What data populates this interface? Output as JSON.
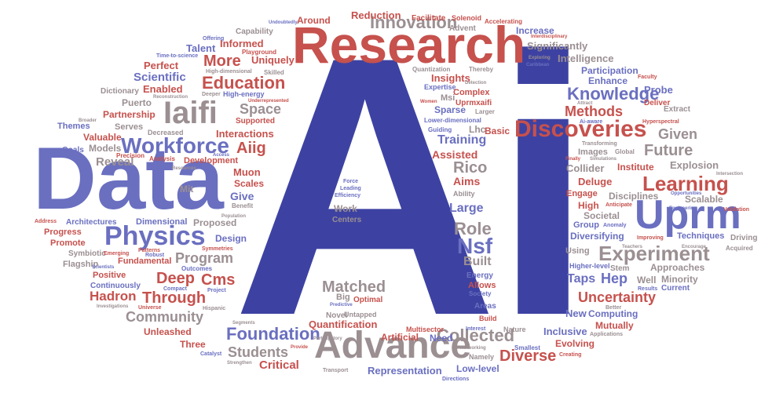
{
  "words": [
    {
      "text": "Ai",
      "color": "#3d42a2"
    },
    {
      "text": "Data",
      "color": "#6a6fc0"
    },
    {
      "text": "Research",
      "color": "#c6514d"
    },
    {
      "text": "Advance",
      "color": "#9b8f92"
    },
    {
      "text": "Uprm",
      "color": "#6a6fc0"
    },
    {
      "text": "Physics",
      "color": "#6a6fc0"
    },
    {
      "text": "Iaifi",
      "color": "#9b8f92"
    },
    {
      "text": "Discoveries",
      "color": "#c6514d"
    },
    {
      "text": "Workforce",
      "color": "#6a6fc0"
    },
    {
      "text": "Experiment",
      "color": "#9b8f92"
    },
    {
      "text": "Learning",
      "color": "#c6514d"
    },
    {
      "text": "Innovation",
      "color": "#9b8f92"
    },
    {
      "text": "Knowledge",
      "color": "#6a6fc0"
    },
    {
      "text": "Collected",
      "color": "#9b8f92"
    },
    {
      "text": "Foundation",
      "color": "#6a6fc0"
    },
    {
      "text": "Education",
      "color": "#c6514d"
    },
    {
      "text": "Nsf",
      "color": "#6a6fc0"
    },
    {
      "text": "Role",
      "color": "#9b8f92"
    },
    {
      "text": "Matched",
      "color": "#9b8f92"
    },
    {
      "text": "Diverse",
      "color": "#c6514d"
    },
    {
      "text": "Students",
      "color": "#9b8f92"
    },
    {
      "text": "Through",
      "color": "#c6514d"
    },
    {
      "text": "Community",
      "color": "#9b8f92"
    },
    {
      "text": "Uncertainty",
      "color": "#c6514d"
    },
    {
      "text": "Methods",
      "color": "#c6514d"
    },
    {
      "text": "Hadron",
      "color": "#c6514d"
    },
    {
      "text": "Deep",
      "color": "#c6514d"
    },
    {
      "text": "Cms",
      "color": "#c6514d"
    },
    {
      "text": "Aiig",
      "color": "#c6514d"
    },
    {
      "text": "Future",
      "color": "#9b8f92"
    },
    {
      "text": "More",
      "color": "#c6514d"
    },
    {
      "text": "Space",
      "color": "#9b8f92"
    },
    {
      "text": "Given",
      "color": "#9b8f92"
    },
    {
      "text": "Training",
      "color": "#6a6fc0"
    },
    {
      "text": "Rico",
      "color": "#9b8f92"
    },
    {
      "text": "Program",
      "color": "#9b8f92"
    },
    {
      "text": "Scientific",
      "color": "#6a6fc0"
    },
    {
      "text": "Reveal",
      "color": "#9b8f92"
    },
    {
      "text": "Large",
      "color": "#6a6fc0"
    },
    {
      "text": "Built",
      "color": "#9b8f92"
    },
    {
      "text": "Hep",
      "color": "#6a6fc0"
    },
    {
      "text": "Taps",
      "color": "#6a6fc0"
    },
    {
      "text": "Critical",
      "color": "#c6514d"
    },
    {
      "text": "Representation",
      "color": "#6a6fc0"
    },
    {
      "text": "Quantification",
      "color": "#c6514d"
    },
    {
      "text": "Interactions",
      "color": "#c6514d"
    },
    {
      "text": "Perfect",
      "color": "#c6514d"
    },
    {
      "text": "Talent",
      "color": "#6a6fc0"
    },
    {
      "text": "Informed",
      "color": "#c6514d"
    },
    {
      "text": "Reduction",
      "color": "#c6514d"
    },
    {
      "text": "Around",
      "color": "#c6514d"
    },
    {
      "text": "Intelligence",
      "color": "#9b8f92"
    },
    {
      "text": "Significantly",
      "color": "#9b8f92"
    },
    {
      "text": "Increase",
      "color": "#6a6fc0"
    },
    {
      "text": "Capability",
      "color": "#9b8f92"
    },
    {
      "text": "Uniquely",
      "color": "#c6514d"
    },
    {
      "text": "Enabled",
      "color": "#c6514d"
    },
    {
      "text": "Puerto",
      "color": "#9b8f92"
    },
    {
      "text": "Partnership",
      "color": "#c6514d"
    },
    {
      "text": "Dictionary",
      "color": "#9b8f92"
    },
    {
      "text": "Valuable",
      "color": "#c6514d"
    },
    {
      "text": "Themes",
      "color": "#6a6fc0"
    },
    {
      "text": "Models",
      "color": "#9b8f92"
    },
    {
      "text": "Goals",
      "color": "#6a6fc0"
    },
    {
      "text": "Serves",
      "color": "#9b8f92"
    },
    {
      "text": "Supported",
      "color": "#c6514d"
    },
    {
      "text": "Development",
      "color": "#c6514d"
    },
    {
      "text": "Muon",
      "color": "#c6514d"
    },
    {
      "text": "Mit",
      "color": "#9b8f92"
    },
    {
      "text": "Scales",
      "color": "#c6514d"
    },
    {
      "text": "Give",
      "color": "#6a6fc0"
    },
    {
      "text": "Assisted",
      "color": "#c6514d"
    },
    {
      "text": "Aims",
      "color": "#c6514d"
    },
    {
      "text": "Basic",
      "color": "#c6514d"
    },
    {
      "text": "Lhc",
      "color": "#9b8f92"
    },
    {
      "text": "Sparse",
      "color": "#6a6fc0"
    },
    {
      "text": "Insights",
      "color": "#c6514d"
    },
    {
      "text": "Complex",
      "color": "#c6514d"
    },
    {
      "text": "Msi",
      "color": "#9b8f92"
    },
    {
      "text": "Uprmxaifi",
      "color": "#c6514d"
    },
    {
      "text": "Expertise",
      "color": "#6a6fc0"
    },
    {
      "text": "Participation",
      "color": "#6a6fc0"
    },
    {
      "text": "Enhance",
      "color": "#6a6fc0"
    },
    {
      "text": "Probe",
      "color": "#6a6fc0"
    },
    {
      "text": "Deliver",
      "color": "#c6514d"
    },
    {
      "text": "Extract",
      "color": "#9b8f92"
    },
    {
      "text": "Institute",
      "color": "#c6514d"
    },
    {
      "text": "Collider",
      "color": "#9b8f92"
    },
    {
      "text": "Explosion",
      "color": "#9b8f92"
    },
    {
      "text": "Deluge",
      "color": "#c6514d"
    },
    {
      "text": "Disciplines",
      "color": "#9b8f92"
    },
    {
      "text": "Engage",
      "color": "#c6514d"
    },
    {
      "text": "High",
      "color": "#c6514d"
    },
    {
      "text": "Scalable",
      "color": "#9b8f92"
    },
    {
      "text": "Societal",
      "color": "#9b8f92"
    },
    {
      "text": "Group",
      "color": "#6a6fc0"
    },
    {
      "text": "Diversifying",
      "color": "#6a6fc0"
    },
    {
      "text": "Techniques",
      "color": "#6a6fc0"
    },
    {
      "text": "Driving",
      "color": "#9b8f92"
    },
    {
      "text": "Using",
      "color": "#9b8f92"
    },
    {
      "text": "Stem",
      "color": "#9b8f92"
    },
    {
      "text": "Approaches",
      "color": "#9b8f92"
    },
    {
      "text": "Well",
      "color": "#9b8f92"
    },
    {
      "text": "Minority",
      "color": "#9b8f92"
    },
    {
      "text": "Current",
      "color": "#6a6fc0"
    },
    {
      "text": "New",
      "color": "#6a6fc0"
    },
    {
      "text": "Computing",
      "color": "#6a6fc0"
    },
    {
      "text": "Mutually",
      "color": "#c6514d"
    },
    {
      "text": "Inclusive",
      "color": "#6a6fc0"
    },
    {
      "text": "Evolving",
      "color": "#c6514d"
    },
    {
      "text": "Low-level",
      "color": "#6a6fc0"
    },
    {
      "text": "Need",
      "color": "#6a6fc0"
    },
    {
      "text": "Artificial",
      "color": "#c6514d"
    },
    {
      "text": "Unleashed",
      "color": "#c6514d"
    },
    {
      "text": "Three",
      "color": "#c6514d"
    },
    {
      "text": "Optimal",
      "color": "#c6514d"
    },
    {
      "text": "Big",
      "color": "#9b8f92"
    },
    {
      "text": "Novel",
      "color": "#9b8f92"
    },
    {
      "text": "Untapped",
      "color": "#9b8f92"
    },
    {
      "text": "Continuously",
      "color": "#6a6fc0"
    },
    {
      "text": "Positive",
      "color": "#c6514d"
    },
    {
      "text": "Flagship",
      "color": "#9b8f92"
    },
    {
      "text": "Symbiotic",
      "color": "#9b8f92"
    },
    {
      "text": "Promote",
      "color": "#c6514d"
    },
    {
      "text": "Progress",
      "color": "#c6514d"
    },
    {
      "text": "Fundamental",
      "color": "#c6514d"
    },
    {
      "text": "Dimensional",
      "color": "#6a6fc0"
    },
    {
      "text": "Proposed",
      "color": "#9b8f92"
    },
    {
      "text": "Design",
      "color": "#6a6fc0"
    },
    {
      "text": "Architectures",
      "color": "#6a6fc0"
    },
    {
      "text": "Work",
      "color": "#9b8f92"
    },
    {
      "text": "Centers",
      "color": "#9b8f92"
    },
    {
      "text": "Force",
      "color": "#6a6fc0"
    },
    {
      "text": "Leading",
      "color": "#6a6fc0"
    },
    {
      "text": "Efficiency",
      "color": "#6a6fc0"
    },
    {
      "text": "Allows",
      "color": "#c6514d"
    },
    {
      "text": "Energy",
      "color": "#6a6fc0"
    },
    {
      "text": "Society",
      "color": "#6a6fc0"
    },
    {
      "text": "Areas",
      "color": "#6a6fc0"
    },
    {
      "text": "Build",
      "color": "#c6514d"
    },
    {
      "text": "Solenoid",
      "color": "#c6514d"
    },
    {
      "text": "Facilitate",
      "color": "#c6514d"
    },
    {
      "text": "Accelerating",
      "color": "#c6514d"
    },
    {
      "text": "Advent",
      "color": "#9b8f92"
    },
    {
      "text": "Quantization",
      "color": "#9b8f92"
    },
    {
      "text": "Thereby",
      "color": "#9b8f92"
    },
    {
      "text": "Undoubtedly",
      "color": "#6a6fc0"
    },
    {
      "text": "Offering",
      "color": "#6a6fc0"
    },
    {
      "text": "Playground",
      "color": "#c6514d"
    },
    {
      "text": "Time-to-science",
      "color": "#6a6fc0"
    },
    {
      "text": "Skilled",
      "color": "#9b8f92"
    },
    {
      "text": "High-dimensional",
      "color": "#9b8f92"
    },
    {
      "text": "High-energy",
      "color": "#6a6fc0"
    },
    {
      "text": "Deeper",
      "color": "#9b8f92"
    },
    {
      "text": "Reconstruction",
      "color": "#9b8f92"
    },
    {
      "text": "Underrepresented",
      "color": "#c6514d"
    },
    {
      "text": "Broader",
      "color": "#9b8f92"
    },
    {
      "text": "Decreased",
      "color": "#9b8f92"
    },
    {
      "text": "Precision",
      "color": "#c6514d"
    },
    {
      "text": "Analysis",
      "color": "#c6514d"
    },
    {
      "text": "Access",
      "color": "#6a6fc0"
    },
    {
      "text": "Resources",
      "color": "#9b8f92"
    },
    {
      "text": "Population",
      "color": "#9b8f92"
    },
    {
      "text": "Benefit",
      "color": "#9b8f92"
    },
    {
      "text": "Address",
      "color": "#c6514d"
    },
    {
      "text": "Symmetries",
      "color": "#c6514d"
    },
    {
      "text": "Patterns",
      "color": "#c6514d"
    },
    {
      "text": "Emerging",
      "color": "#c6514d"
    },
    {
      "text": "Robust",
      "color": "#6a6fc0"
    },
    {
      "text": "Scientists",
      "color": "#6a6fc0"
    },
    {
      "text": "Outcomes",
      "color": "#6a6fc0"
    },
    {
      "text": "Compact",
      "color": "#6a6fc0"
    },
    {
      "text": "Universe",
      "color": "#c6514d"
    },
    {
      "text": "Project",
      "color": "#6a6fc0"
    },
    {
      "text": "Investigations",
      "color": "#9b8f92"
    },
    {
      "text": "Hispanic",
      "color": "#9b8f92"
    },
    {
      "text": "Segments",
      "color": "#9b8f92"
    },
    {
      "text": "Participatory",
      "color": "#9b8f92"
    },
    {
      "text": "Catalyst",
      "color": "#6a6fc0"
    },
    {
      "text": "Strengthen",
      "color": "#9b8f92"
    },
    {
      "text": "Provide",
      "color": "#c6514d"
    },
    {
      "text": "Transport",
      "color": "#9b8f92"
    },
    {
      "text": "Multisector",
      "color": "#c6514d"
    },
    {
      "text": "Interest",
      "color": "#6a6fc0"
    },
    {
      "text": "Nature",
      "color": "#9b8f92"
    },
    {
      "text": "Networking",
      "color": "#9b8f92"
    },
    {
      "text": "Namely",
      "color": "#9b8f92"
    },
    {
      "text": "Smallest",
      "color": "#6a6fc0"
    },
    {
      "text": "Creating",
      "color": "#c6514d"
    },
    {
      "text": "Directions",
      "color": "#6a6fc0"
    },
    {
      "text": "Applications",
      "color": "#9b8f92"
    },
    {
      "text": "Better",
      "color": "#9b8f92"
    },
    {
      "text": "Results",
      "color": "#6a6fc0"
    },
    {
      "text": "Higher-level",
      "color": "#6a6fc0"
    },
    {
      "text": "Teachers",
      "color": "#9b8f92"
    },
    {
      "text": "Encourage",
      "color": "#9b8f92"
    },
    {
      "text": "Acquired",
      "color": "#9b8f92"
    },
    {
      "text": "Improving",
      "color": "#c6514d"
    },
    {
      "text": "Anomaly",
      "color": "#6a6fc0"
    },
    {
      "text": "Anticipate",
      "color": "#c6514d"
    },
    {
      "text": "Opportunities",
      "color": "#6a6fc0"
    },
    {
      "text": "Engineering",
      "color": "#6a6fc0"
    },
    {
      "text": "Validation",
      "color": "#c6514d"
    },
    {
      "text": "Intersection",
      "color": "#9b8f92"
    },
    {
      "text": "Simulations",
      "color": "#9b8f92"
    },
    {
      "text": "Finally",
      "color": "#c6514d"
    },
    {
      "text": "Transforming",
      "color": "#9b8f92"
    },
    {
      "text": "Images",
      "color": "#9b8f92"
    },
    {
      "text": "Ai-aware",
      "color": "#6a6fc0"
    },
    {
      "text": "Hyperspectral",
      "color": "#c6514d"
    },
    {
      "text": "Global",
      "color": "#9b8f92"
    },
    {
      "text": "Attract",
      "color": "#9b8f92"
    },
    {
      "text": "Faculty",
      "color": "#c6514d"
    },
    {
      "text": "Caribbean",
      "color": "#6a6fc0"
    },
    {
      "text": "Exploring",
      "color": "#9b8f92"
    },
    {
      "text": "Interdisciplinary",
      "color": "#c6514d"
    },
    {
      "text": "Women",
      "color": "#c6514d"
    },
    {
      "text": "Detection",
      "color": "#9b8f92"
    },
    {
      "text": "Larger",
      "color": "#9b8f92"
    },
    {
      "text": "Lower-dimensional",
      "color": "#6a6fc0"
    },
    {
      "text": "Guiding",
      "color": "#6a6fc0"
    },
    {
      "text": "Ability",
      "color": "#9b8f92"
    },
    {
      "text": "Predictive",
      "color": "#6a6fc0"
    }
  ]
}
